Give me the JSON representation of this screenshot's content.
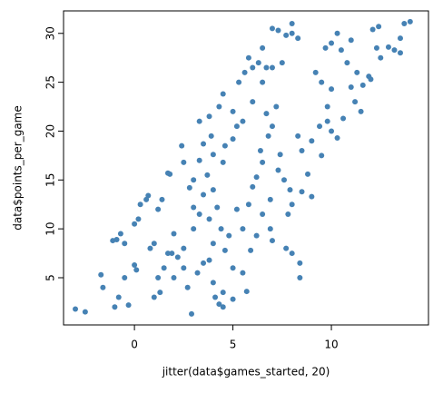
{
  "chart_data": {
    "type": "scatter",
    "x_label": "jitter(data$games_started, 20)",
    "y_label": "data$points_per_game",
    "color": "#4682b4",
    "x": [
      -3,
      -2.5,
      -1.7,
      -1.6,
      -1,
      -0.8,
      -0.5,
      -0.3,
      0,
      0.1,
      -1.1,
      -0.9,
      -0.7,
      -0.5,
      0,
      0.2,
      0.3,
      0.6,
      0.7,
      1.2,
      1.4,
      1.7,
      1.8,
      2.4,
      2.5,
      1.5,
      1.7,
      1.9,
      2,
      2.2,
      2.5,
      2.7,
      2.9,
      1,
      1.3,
      1.2,
      0.8,
      1,
      2,
      2.5,
      3,
      3.3,
      3,
      2.8,
      3,
      3.3,
      3.5,
      3.9,
      3.8,
      3.3,
      4.3,
      4.5,
      5,
      5.3,
      5.6,
      5.8,
      6,
      6.5,
      7,
      7.3,
      7.7,
      8,
      8,
      8.3,
      7.5,
      7,
      6.7,
      6.3,
      6.5,
      6,
      5.5,
      5.2,
      5,
      4.6,
      4,
      4.5,
      3.7,
      4,
      4.2,
      3.5,
      3.8,
      4.4,
      4.8,
      4,
      4.6,
      3.8,
      3.5,
      3.2,
      4,
      4.5,
      4.3,
      4.5,
      4.1,
      5,
      5.7,
      5.5,
      5,
      5.9,
      5.5,
      5.2,
      5.8,
      6,
      6.2,
      6.5,
      6.4,
      6.8,
      7,
      6.7,
      7.2,
      7.4,
      7.3,
      7.6,
      7.9,
      6.9,
      6.5,
      6.9,
      6.2,
      7,
      7.7,
      8,
      8.4,
      8.4,
      7.8,
      8,
      8.5,
      8.8,
      9,
      8.5,
      8.3,
      9,
      9.5,
      9.4,
      9.8,
      10,
      9.5,
      9.2,
      9.7,
      10,
      10.3,
      10.5,
      11,
      10.8,
      11.3,
      11,
      11.2,
      10.6,
      10.3,
      10,
      9.8,
      11.5,
      11.9,
      12,
      12.3,
      12.1,
      12.4,
      12.5,
      12.9,
      13.2,
      13.5,
      13.7,
      14,
      13.5,
      11.6
    ],
    "values": [
      1.8,
      1.5,
      5.3,
      4,
      2,
      3,
      5,
      2.2,
      6.3,
      5.8,
      8.8,
      8.9,
      9.5,
      8.5,
      10.5,
      11,
      12.5,
      13,
      13.4,
      12,
      13,
      15.7,
      15.6,
      18.5,
      16.8,
      6,
      7.5,
      7.5,
      5,
      7.1,
      6,
      4,
      1.3,
      3,
      3.5,
      5,
      8,
      8.5,
      9.5,
      8,
      10,
      11.5,
      12.2,
      14.2,
      15,
      17,
      18.7,
      19.5,
      21.5,
      21,
      22.5,
      23.8,
      22,
      25,
      26,
      27.5,
      26.5,
      28.5,
      30.5,
      30.3,
      29.8,
      30,
      31,
      29.5,
      27,
      26.5,
      26.5,
      27,
      25,
      23,
      21,
      20.5,
      19.2,
      18.5,
      17.6,
      16.8,
      15.5,
      14,
      12.2,
      13.5,
      11,
      10,
      9.3,
      8.5,
      7.8,
      6.8,
      6.5,
      5.5,
      4.5,
      3.5,
      2.3,
      2,
      3,
      2.8,
      3.6,
      5.5,
      6,
      7.8,
      10,
      12,
      12.5,
      14.3,
      15.3,
      16.8,
      18,
      19.5,
      20.5,
      21.8,
      22.5,
      17.6,
      16,
      15,
      14,
      13,
      11.5,
      10,
      9.3,
      8.8,
      8,
      7.5,
      6.5,
      5,
      11.5,
      12.5,
      13.8,
      15.6,
      13.3,
      18,
      19.5,
      19,
      17.5,
      20.5,
      22.5,
      24.3,
      25,
      26,
      28.5,
      29,
      30,
      28.3,
      29.3,
      27,
      26,
      24.5,
      23,
      21.3,
      19.3,
      20,
      21,
      22,
      25.6,
      25.3,
      28.5,
      30.4,
      30.7,
      27.5,
      28.6,
      28.3,
      29.5,
      31,
      31.2,
      28,
      24.7
    ],
    "xlim": [
      -3.6,
      14.93
    ],
    "ylim": [
      0.17,
      32.3
    ],
    "xticks": [
      0,
      5,
      10
    ],
    "yticks": [
      5,
      10,
      15,
      20,
      25,
      30
    ]
  }
}
